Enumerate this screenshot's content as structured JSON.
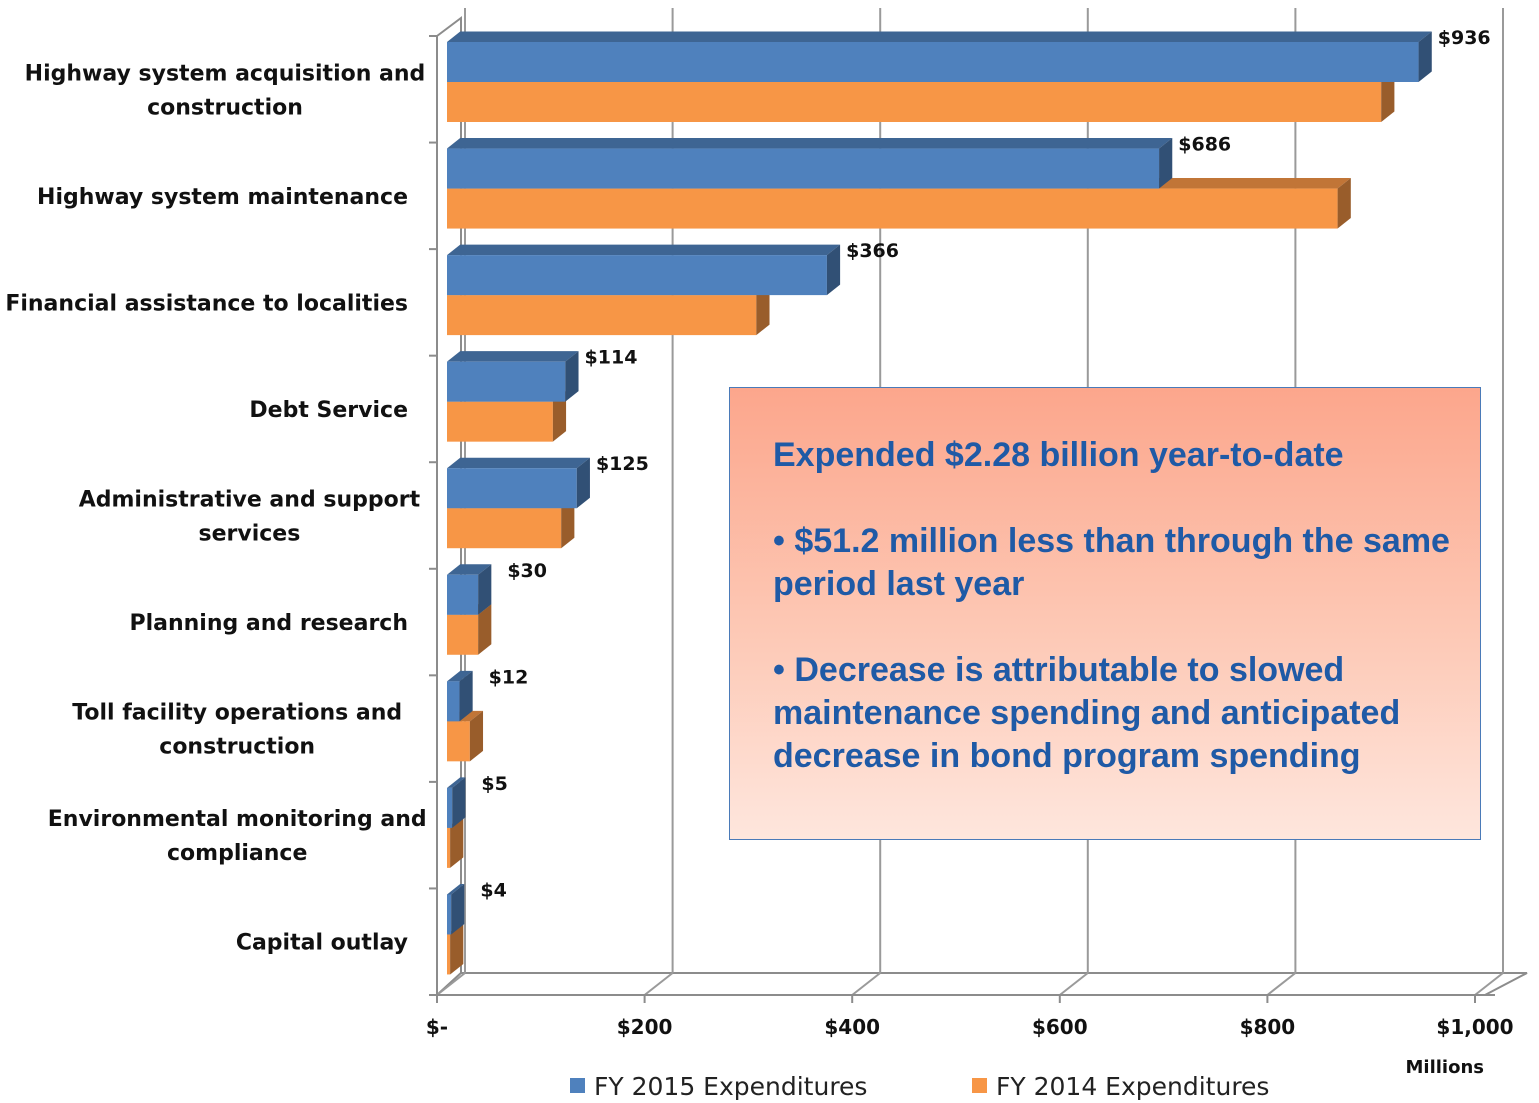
{
  "chart_data": {
    "type": "bar",
    "orientation": "horizontal",
    "style": "3d",
    "categories": [
      "Highway system acquisition and construction",
      "Highway system maintenance",
      "Financial assistance to localities",
      "Debt Service",
      "Administrative and support services",
      "Planning and research",
      "Toll facility operations and construction",
      "Environmental monitoring and compliance",
      "Capital outlay"
    ],
    "category_lines": [
      [
        "Highway system acquisition and",
        "construction"
      ],
      [
        "Highway system maintenance"
      ],
      [
        "Financial assistance to localities"
      ],
      [
        "Debt Service"
      ],
      [
        "Administrative and support",
        "services"
      ],
      [
        "Planning and research"
      ],
      [
        "Toll facility operations and",
        "construction"
      ],
      [
        "Environmental monitoring and",
        "compliance"
      ],
      [
        "Capital outlay"
      ]
    ],
    "series": [
      {
        "name": "FY 2015 Expenditures",
        "color": "#4f81bd",
        "values": [
          936,
          686,
          366,
          114,
          125,
          30,
          12,
          5,
          4
        ],
        "labels": [
          "$936",
          "$686",
          "$366",
          "$114",
          "$125",
          "$30",
          "$12",
          "$5",
          "$4"
        ]
      },
      {
        "name": "FY 2014 Expenditures",
        "color": "#f79646",
        "values": [
          900,
          858,
          298,
          102,
          110,
          30,
          22,
          3,
          3
        ]
      }
    ],
    "xlim": [
      0,
      1000
    ],
    "xticks": [
      0,
      200,
      400,
      600,
      800,
      1000
    ],
    "xtick_labels": [
      "$-",
      "$200",
      "$400",
      "$600",
      "$800",
      "$1,000"
    ],
    "xlabel": "Millions",
    "grid": true,
    "legend_position": "bottom"
  },
  "callout": {
    "headline": "Expended $2.28 billion year-to-date",
    "bullet_1": "• $51.2 million less than through the same period last year",
    "bullet_2": "•  Decrease is attributable to slowed maintenance spending and anticipated decrease in bond program spending",
    "accent_color": "#1f5aa6"
  }
}
